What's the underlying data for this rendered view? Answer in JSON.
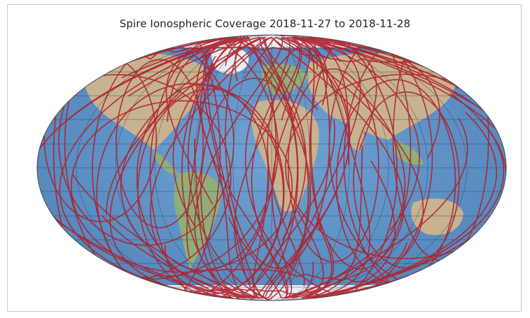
{
  "figure": {
    "title": "Spire Ionospheric Coverage 2018-11-27 to 2018-11-28"
  },
  "map": {
    "projection": "Kavrayskiy VII (elliptical world map)",
    "basemap": "shaded relief",
    "graticule": true
  },
  "colors": {
    "ocean": "#5f93c7",
    "land": "#c7b38f",
    "vegetation": "#8fae7a",
    "ice": "#e8eef2",
    "track": "#b0202a",
    "graticule": "#2b3a55",
    "frame_border": "#c9c9c9"
  },
  "series": [
    {
      "kind": "radio occultation tracks",
      "color": "#b0202a"
    }
  ]
}
